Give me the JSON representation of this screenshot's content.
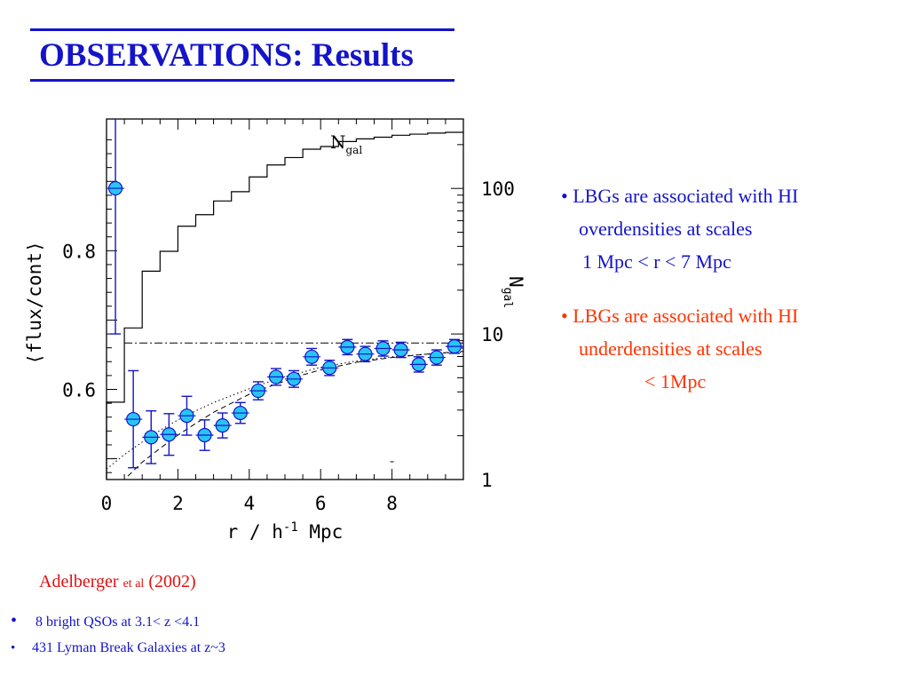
{
  "slide": {
    "title": "OBSERVATIONS: Results"
  },
  "bullets": [
    {
      "lines": [
        "• LBGs are associated with HI",
        "overdensities at scales",
        "1 Mpc  < r < 7 Mpc"
      ],
      "color": "#1414c8"
    },
    {
      "lines": [
        "• LBGs are associated with HI",
        "underdensities at scales",
        "< 1Mpc"
      ],
      "color": "#ff3300"
    }
  ],
  "citation": {
    "author": "Adelberger",
    "etal": "et al",
    "year": "(2002)",
    "color": "#e01010"
  },
  "notes": [
    {
      "bullet": "•",
      "text": "8 bright QSOs at 3.1< z <4.1"
    },
    {
      "bullet": "•",
      "text": "431 Lyman Break Galaxies at z~3"
    }
  ],
  "chart_data": {
    "type": "scatter",
    "xlabel": "r / h",
    "xlabel_sup": "-1",
    "xlabel_unit": "Mpc",
    "ylabel": "⟨flux/cont⟩",
    "y2label": "N",
    "y2label_sub": "gal",
    "curve_label": "N",
    "curve_label_sub": "gal",
    "xlim": [
      0,
      10
    ],
    "ylim": [
      0.47,
      0.99
    ],
    "xticks": [
      "0",
      "2",
      "4",
      "6",
      "8"
    ],
    "xtick_values": [
      0,
      2,
      4,
      6,
      8
    ],
    "yticks": [
      "0.6",
      "0.8"
    ],
    "ytick_values": [
      0.6,
      0.8
    ],
    "y2ticks": [
      "1",
      "10",
      "100"
    ],
    "y2tick_values": [
      1,
      10,
      100
    ],
    "y2lim": [
      1,
      300
    ],
    "y2scale": "log",
    "marker_color": "#29c4f4",
    "errorbar_color": "#1414c8",
    "points": [
      {
        "x": 0.25,
        "y": 0.89,
        "err": 0.21
      },
      {
        "x": 0.75,
        "y": 0.557,
        "err": 0.07
      },
      {
        "x": 1.25,
        "y": 0.531,
        "err": 0.038
      },
      {
        "x": 1.75,
        "y": 0.535,
        "err": 0.03
      },
      {
        "x": 2.25,
        "y": 0.562,
        "err": 0.028
      },
      {
        "x": 2.75,
        "y": 0.534,
        "err": 0.022
      },
      {
        "x": 3.25,
        "y": 0.548,
        "err": 0.018
      },
      {
        "x": 3.75,
        "y": 0.566,
        "err": 0.015
      },
      {
        "x": 4.25,
        "y": 0.598,
        "err": 0.013
      },
      {
        "x": 4.75,
        "y": 0.618,
        "err": 0.012
      },
      {
        "x": 5.25,
        "y": 0.615,
        "err": 0.012
      },
      {
        "x": 5.75,
        "y": 0.647,
        "err": 0.012
      },
      {
        "x": 6.25,
        "y": 0.631,
        "err": 0.011
      },
      {
        "x": 6.75,
        "y": 0.661,
        "err": 0.011
      },
      {
        "x": 7.25,
        "y": 0.651,
        "err": 0.011
      },
      {
        "x": 7.75,
        "y": 0.659,
        "err": 0.011
      },
      {
        "x": 8.25,
        "y": 0.657,
        "err": 0.011
      },
      {
        "x": 8.75,
        "y": 0.636,
        "err": 0.011
      },
      {
        "x": 9.25,
        "y": 0.646,
        "err": 0.011
      },
      {
        "x": 9.75,
        "y": 0.662,
        "err": 0.01
      }
    ],
    "ngal_histogram": {
      "edges": [
        0,
        0.5,
        1,
        1.5,
        2,
        2.5,
        3,
        3.5,
        4,
        4.5,
        5,
        5.5,
        6,
        6.5,
        7,
        7.5,
        8,
        8.5,
        9,
        9.5,
        10
      ],
      "values": [
        3.4,
        11,
        27,
        37,
        55,
        66,
        82,
        95,
        120,
        145,
        163,
        186,
        194,
        210,
        219,
        225,
        232,
        236,
        240,
        243
      ]
    },
    "mean_level": 0.667,
    "dotted_model": [
      [
        0,
        0.485
      ],
      [
        0.5,
        0.506
      ],
      [
        1,
        0.524
      ],
      [
        1.5,
        0.541
      ],
      [
        2,
        0.556
      ],
      [
        2.5,
        0.569
      ],
      [
        3,
        0.581
      ],
      [
        3.5,
        0.591
      ],
      [
        4,
        0.601
      ],
      [
        4.5,
        0.61
      ],
      [
        5,
        0.618
      ],
      [
        5.5,
        0.625
      ],
      [
        6,
        0.632
      ],
      [
        7,
        0.641
      ],
      [
        8,
        0.647
      ],
      [
        9,
        0.651
      ],
      [
        10,
        0.654
      ]
    ],
    "dashed_model": [
      [
        0.6,
        0.475
      ],
      [
        1,
        0.495
      ],
      [
        1.5,
        0.515
      ],
      [
        2,
        0.534
      ],
      [
        2.5,
        0.551
      ],
      [
        3,
        0.567
      ],
      [
        3.5,
        0.58
      ],
      [
        4,
        0.593
      ],
      [
        4.5,
        0.603
      ],
      [
        5,
        0.612
      ],
      [
        5.5,
        0.621
      ],
      [
        6,
        0.628
      ],
      [
        7,
        0.639
      ],
      [
        8,
        0.646
      ],
      [
        9,
        0.651
      ],
      [
        10,
        0.655
      ]
    ]
  }
}
